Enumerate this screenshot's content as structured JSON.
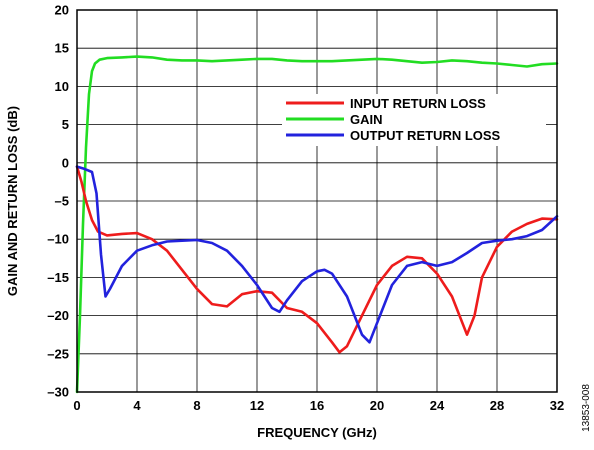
{
  "chart_data": {
    "type": "line",
    "xlabel": "FREQUENCY (GHz)",
    "ylabel": "GAIN AND RETURN LOSS (dB)",
    "xlim": [
      0,
      32
    ],
    "ylim": [
      -30,
      20
    ],
    "x_ticks": [
      0,
      4,
      8,
      12,
      16,
      20,
      24,
      28,
      32
    ],
    "y_ticks": [
      -30,
      -25,
      -20,
      -15,
      -10,
      -5,
      0,
      5,
      10,
      15,
      20
    ],
    "x_tick_labels": [
      "0",
      "4",
      "8",
      "12",
      "16",
      "20",
      "24",
      "28",
      "32"
    ],
    "y_tick_labels": [
      "–30",
      "–25",
      "–20",
      "–15",
      "–10",
      "–5",
      "0",
      "5",
      "10",
      "15",
      "20"
    ],
    "grid": true,
    "legend_position": "upper-right",
    "figure_id": "13853-008",
    "series": [
      {
        "name": "INPUT RETURN LOSS",
        "color": "#ee1c1c",
        "x": [
          0,
          0.3,
          0.6,
          1.0,
          1.4,
          2.0,
          3.0,
          4.0,
          5.0,
          6.0,
          7.0,
          8.0,
          9.0,
          10.0,
          11.0,
          12.0,
          13.0,
          14.0,
          15.0,
          16.0,
          17.0,
          17.5,
          18.0,
          19.0,
          20.0,
          21.0,
          22.0,
          23.0,
          24.0,
          25.0,
          26.0,
          26.5,
          27.0,
          28.0,
          29.0,
          30.0,
          31.0,
          32.0
        ],
        "y": [
          -0.5,
          -2.5,
          -5.0,
          -7.5,
          -9.0,
          -9.5,
          -9.3,
          -9.2,
          -10.0,
          -11.5,
          -14.0,
          -16.5,
          -18.5,
          -18.8,
          -17.2,
          -16.8,
          -17.0,
          -19.0,
          -19.5,
          -21.0,
          -23.5,
          -24.8,
          -24.0,
          -20.0,
          -16.0,
          -13.5,
          -12.3,
          -12.5,
          -14.5,
          -17.5,
          -22.5,
          -20.0,
          -15.0,
          -11.0,
          -9.0,
          -8.0,
          -7.3,
          -7.4
        ]
      },
      {
        "name": "GAIN",
        "color": "#22dd22",
        "x": [
          0,
          0.2,
          0.4,
          0.6,
          0.8,
          1.0,
          1.2,
          1.5,
          2.0,
          3.0,
          4.0,
          5.0,
          6.0,
          7.0,
          8.0,
          9.0,
          10.0,
          11.0,
          12.0,
          13.0,
          14.0,
          15.0,
          16.0,
          17.0,
          18.0,
          19.0,
          20.0,
          21.0,
          22.0,
          23.0,
          24.0,
          25.0,
          26.0,
          27.0,
          28.0,
          29.0,
          30.0,
          31.0,
          32.0
        ],
        "y": [
          -30,
          -20,
          -8,
          2,
          9,
          12,
          13.0,
          13.5,
          13.7,
          13.8,
          13.9,
          13.8,
          13.5,
          13.4,
          13.4,
          13.3,
          13.4,
          13.5,
          13.6,
          13.6,
          13.4,
          13.3,
          13.3,
          13.3,
          13.4,
          13.5,
          13.6,
          13.5,
          13.3,
          13.1,
          13.2,
          13.4,
          13.3,
          13.1,
          13.0,
          12.8,
          12.6,
          12.9,
          13.0
        ]
      },
      {
        "name": "OUTPUT RETURN LOSS",
        "color": "#2222dd",
        "x": [
          0,
          0.5,
          1.0,
          1.3,
          1.6,
          1.9,
          2.2,
          2.6,
          3.0,
          4.0,
          5.0,
          6.0,
          7.0,
          8.0,
          9.0,
          10.0,
          11.0,
          12.0,
          13.0,
          13.5,
          14.0,
          15.0,
          16.0,
          16.5,
          17.0,
          18.0,
          19.0,
          19.5,
          20.0,
          21.0,
          22.0,
          23.0,
          24.0,
          25.0,
          26.0,
          27.0,
          28.0,
          29.0,
          30.0,
          31.0,
          32.0
        ],
        "y": [
          -0.5,
          -0.8,
          -1.2,
          -4.0,
          -12.0,
          -17.5,
          -16.5,
          -15.0,
          -13.5,
          -11.5,
          -10.8,
          -10.3,
          -10.2,
          -10.1,
          -10.5,
          -11.5,
          -13.5,
          -16.0,
          -19.0,
          -19.5,
          -18.0,
          -15.5,
          -14.2,
          -14.0,
          -14.5,
          -17.5,
          -22.5,
          -23.5,
          -21.0,
          -16.0,
          -13.5,
          -13.0,
          -13.5,
          -13.0,
          -11.8,
          -10.5,
          -10.2,
          -10.0,
          -9.6,
          -8.8,
          -7.0
        ]
      }
    ]
  }
}
